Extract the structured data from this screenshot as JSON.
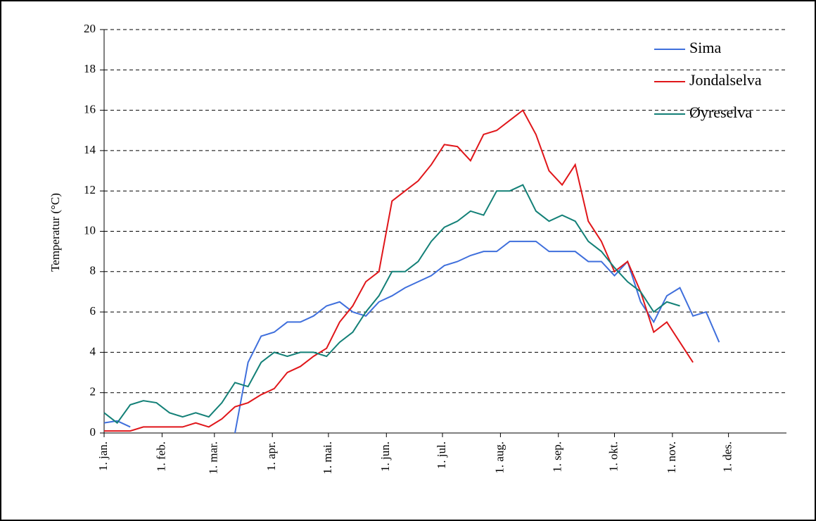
{
  "chart_data": {
    "type": "line",
    "y_label": "Temperatur (°C)",
    "x": [
      0,
      7,
      14,
      21,
      28,
      35,
      42,
      49,
      56,
      63,
      70,
      77,
      84,
      91,
      98,
      105,
      112,
      119,
      126,
      133,
      140,
      147,
      154,
      161,
      168,
      175,
      182,
      189,
      196,
      203,
      210,
      217,
      224,
      231,
      238,
      245,
      252,
      259,
      266,
      273,
      280,
      287,
      294,
      301,
      308,
      315,
      322,
      329
    ],
    "xlim": [
      0,
      365
    ],
    "xticks": [
      {
        "value": 0,
        "label": "1. jan."
      },
      {
        "value": 31,
        "label": "1. feb."
      },
      {
        "value": 59,
        "label": "1. mar."
      },
      {
        "value": 90,
        "label": "1. apr."
      },
      {
        "value": 120,
        "label": "1. mai."
      },
      {
        "value": 151,
        "label": "1. jun."
      },
      {
        "value": 181,
        "label": "1. jul."
      },
      {
        "value": 212,
        "label": "1. aug."
      },
      {
        "value": 243,
        "label": "1. sep."
      },
      {
        "value": 273,
        "label": "1. okt."
      },
      {
        "value": 304,
        "label": "1. nov."
      },
      {
        "value": 334,
        "label": "1. des."
      }
    ],
    "ylim": [
      0,
      20
    ],
    "yticks": [
      0,
      2,
      4,
      6,
      8,
      10,
      12,
      14,
      16,
      18,
      20
    ],
    "grid": true,
    "legend": "top-right",
    "series": [
      {
        "name": "Sima",
        "color": "#3f6fdc",
        "values": [
          0.5,
          0.6,
          0.3,
          null,
          null,
          null,
          null,
          null,
          null,
          null,
          0.0,
          3.5,
          4.8,
          5.0,
          5.5,
          5.5,
          5.8,
          6.3,
          6.5,
          6.0,
          5.8,
          6.5,
          6.8,
          7.2,
          7.5,
          7.8,
          8.3,
          8.5,
          8.8,
          9.0,
          9.0,
          9.5,
          9.5,
          9.5,
          9.0,
          9.0,
          9.0,
          8.5,
          8.5,
          7.8,
          8.5,
          6.5,
          5.5,
          6.8,
          7.2,
          5.8,
          6.0,
          4.5
        ]
      },
      {
        "name": "Jondalselva",
        "color": "#e0161a",
        "values": [
          0.1,
          0.1,
          0.1,
          0.3,
          0.3,
          0.3,
          0.3,
          0.5,
          0.3,
          0.7,
          1.3,
          1.5,
          1.9,
          2.2,
          3.0,
          3.3,
          3.8,
          4.2,
          5.5,
          6.3,
          7.5,
          8.0,
          11.5,
          12.0,
          12.5,
          13.3,
          14.3,
          14.2,
          13.5,
          14.8,
          15.0,
          15.5,
          16.0,
          14.8,
          13.0,
          12.3,
          13.3,
          10.5,
          9.5,
          8.0,
          8.5,
          7.0,
          5.0,
          5.5,
          4.5,
          3.5,
          null,
          null
        ]
      },
      {
        "name": "Øyreselva",
        "color": "#138077",
        "values": [
          1.0,
          0.5,
          1.4,
          1.6,
          1.5,
          1.0,
          0.8,
          1.0,
          0.8,
          1.5,
          2.5,
          2.3,
          3.5,
          4.0,
          3.8,
          4.0,
          4.0,
          3.8,
          4.5,
          5.0,
          6.0,
          6.8,
          8.0,
          8.0,
          8.5,
          9.5,
          10.2,
          10.5,
          11.0,
          10.8,
          12.0,
          12.0,
          12.3,
          11.0,
          10.5,
          10.8,
          10.5,
          9.5,
          9.0,
          8.2,
          7.5,
          7.0,
          6.0,
          6.5,
          6.3,
          null,
          null,
          null
        ]
      }
    ]
  }
}
